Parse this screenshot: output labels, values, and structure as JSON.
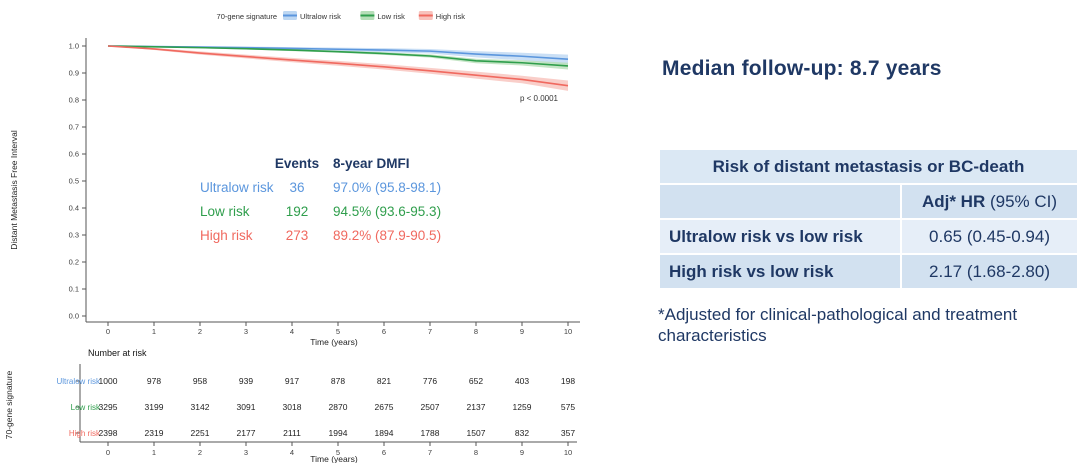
{
  "legend": {
    "title": "70-gene signature",
    "items": [
      {
        "label": "Ultralow risk",
        "line_color": "#5b96dd",
        "band_color": "#bdd7f2"
      },
      {
        "label": "Low risk",
        "line_color": "#2f9e4c",
        "band_color": "#b6deb8"
      },
      {
        "label": "High risk",
        "line_color": "#f0695f",
        "band_color": "#f8c2bc"
      }
    ]
  },
  "chart_data": {
    "type": "line",
    "subtype": "kaplan-meier",
    "title": "",
    "ylabel": "Distant Metastasis Free Interval",
    "xlabel": "Time (years)",
    "ylim": [
      0.0,
      1.0
    ],
    "xlim": [
      0,
      10
    ],
    "yticks": [
      0.0,
      0.1,
      0.2,
      0.3,
      0.4,
      0.5,
      0.6,
      0.7,
      0.8,
      0.9,
      1.0
    ],
    "x": [
      0,
      1,
      2,
      3,
      4,
      5,
      6,
      7,
      8,
      9,
      10
    ],
    "p_value": "p < 0.0001",
    "legend_position": "top",
    "grid": false,
    "annotation": {
      "events_header": "Events",
      "dmfi_header": "8-year DMFI"
    },
    "series": [
      {
        "name": "Ultralow risk",
        "color": "#5b96dd",
        "band_color": "#bdd7f2",
        "events": 36,
        "dmfi_8yr": "97.0% (95.8-98.1)",
        "values": [
          1.0,
          0.998,
          0.996,
          0.994,
          0.991,
          0.988,
          0.985,
          0.981,
          0.97,
          0.962,
          0.951
        ],
        "ci_lower": [
          1.0,
          0.995,
          0.992,
          0.989,
          0.985,
          0.981,
          0.977,
          0.972,
          0.958,
          0.947,
          0.93
        ],
        "ci_upper": [
          1.0,
          1.0,
          0.999,
          0.998,
          0.996,
          0.994,
          0.992,
          0.989,
          0.981,
          0.975,
          0.968
        ]
      },
      {
        "name": "Low risk",
        "color": "#2f9e4c",
        "band_color": "#b6deb8",
        "events": 192,
        "dmfi_8yr": "94.5% (93.6-95.3)",
        "values": [
          1.0,
          0.997,
          0.994,
          0.99,
          0.985,
          0.979,
          0.972,
          0.963,
          0.945,
          0.938,
          0.926
        ],
        "ci_lower": [
          1.0,
          0.995,
          0.991,
          0.987,
          0.981,
          0.975,
          0.967,
          0.957,
          0.936,
          0.928,
          0.913
        ],
        "ci_upper": [
          1.0,
          0.999,
          0.997,
          0.993,
          0.989,
          0.983,
          0.977,
          0.969,
          0.953,
          0.947,
          0.938
        ]
      },
      {
        "name": "High risk",
        "color": "#f0695f",
        "band_color": "#f8c2bc",
        "events": 273,
        "dmfi_8yr": "89.2% (87.9-90.5)",
        "values": [
          1.0,
          0.989,
          0.974,
          0.961,
          0.948,
          0.936,
          0.923,
          0.908,
          0.892,
          0.876,
          0.853
        ],
        "ci_lower": [
          1.0,
          0.985,
          0.968,
          0.954,
          0.94,
          0.927,
          0.913,
          0.897,
          0.879,
          0.862,
          0.834
        ],
        "ci_upper": [
          1.0,
          0.993,
          0.98,
          0.968,
          0.956,
          0.945,
          0.933,
          0.919,
          0.905,
          0.89,
          0.872
        ]
      }
    ],
    "risk_table": {
      "title": "Number at risk",
      "ylabel": "70-gene signature",
      "xlabel": "Time (years)",
      "x": [
        0,
        1,
        2,
        3,
        4,
        5,
        6,
        7,
        8,
        9,
        10
      ],
      "rows": [
        {
          "label": "Ultralow risk",
          "color": "#5b96dd",
          "counts": [
            1000,
            978,
            958,
            939,
            917,
            878,
            821,
            776,
            652,
            403,
            198
          ]
        },
        {
          "label": "Low risk",
          "color": "#2f9e4c",
          "counts": [
            3295,
            3199,
            3142,
            3091,
            3018,
            2870,
            2675,
            2507,
            2137,
            1259,
            575
          ]
        },
        {
          "label": "High risk",
          "color": "#f0695f",
          "counts": [
            2398,
            2319,
            2251,
            2177,
            2111,
            1994,
            1894,
            1788,
            1507,
            832,
            357
          ]
        }
      ]
    }
  },
  "right_panel": {
    "heading": "Median follow-up: 8.7 years",
    "table": {
      "title": "Risk of distant metastasis or BC-death",
      "col_header_bold": "Adj* HR",
      "col_header_rest": " (95% CI)",
      "rows": [
        {
          "label": "Ultralow risk vs low risk",
          "value": "0.65 (0.45-0.94)"
        },
        {
          "label": "High risk vs low risk",
          "value": "2.17 (1.68-2.80)"
        }
      ]
    },
    "footnote": "*Adjusted for clinical-pathological and treatment characteristics"
  },
  "colors": {
    "navy_text": "#1f3864",
    "table_header_bg": "#dbe8f4",
    "table_band_dark": "#d2e1f0",
    "table_band_light": "#e6eef8",
    "axis": "#555555"
  }
}
